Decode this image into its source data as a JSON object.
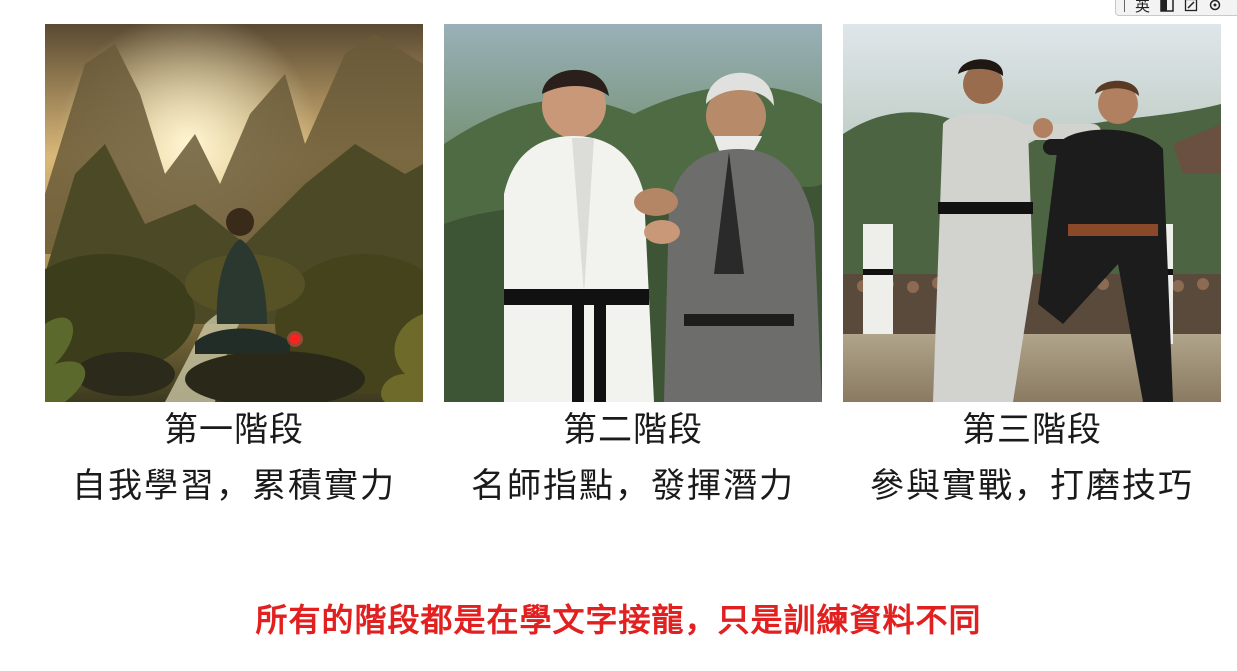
{
  "ime_toolbar": {
    "language_label": "英",
    "icons": [
      "half-full-width-icon",
      "pen-icon",
      "settings-icon"
    ]
  },
  "stages": [
    {
      "title": "第一階段",
      "description": "自我學習，累積實力",
      "image_subject": "meditation-in-mountain-valley"
    },
    {
      "title": "第二階段",
      "description": "名師指點，發揮潛力",
      "image_subject": "master-guiding-student"
    },
    {
      "title": "第三階段",
      "description": "參與實戰，打磨技巧",
      "image_subject": "sparring-match-in-arena"
    }
  ],
  "footer": {
    "text": "所有的階段都是在學文字接龍，只是訓練資料不同",
    "color": "#e32020"
  }
}
